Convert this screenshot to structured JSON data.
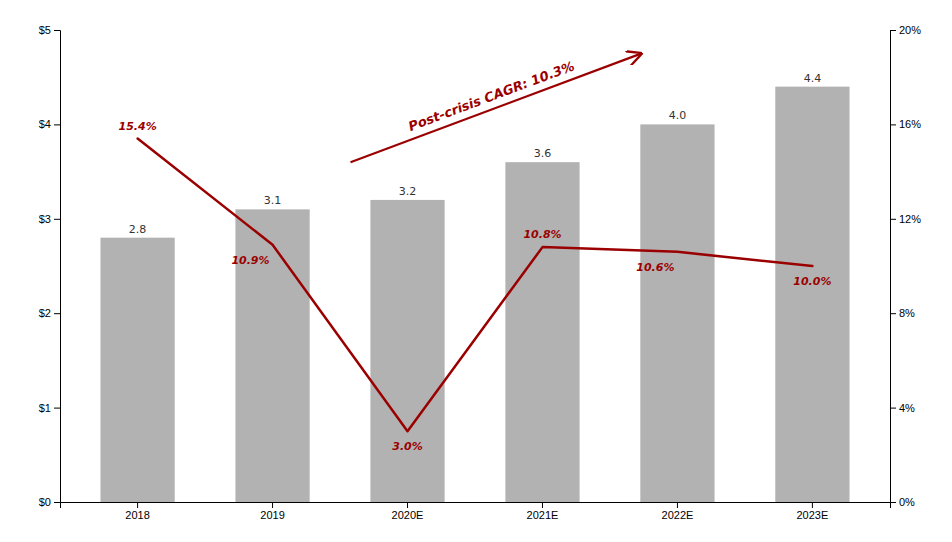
{
  "chart_data": {
    "type": "bar",
    "categories": [
      "2018",
      "2019",
      "2020E",
      "2021E",
      "2022E",
      "2023E"
    ],
    "series": [
      {
        "type": "bar",
        "color": "#b2b2b2",
        "values": [
          2.8,
          3.1,
          3.2,
          3.6,
          4.0,
          4.4
        ],
        "value_labels": [
          "2.8",
          "3.1",
          "3.2",
          "3.6",
          "4.0",
          "4.4"
        ]
      },
      {
        "type": "line",
        "axis": "y2",
        "color": "#9b0000",
        "values": [
          15.4,
          10.9,
          3.0,
          10.8,
          10.6,
          10.0
        ],
        "value_labels": [
          "15.4%",
          "10.9%",
          "3.0%",
          "10.8%",
          "10.6%",
          "10.0%"
        ]
      }
    ],
    "ylim": [
      0,
      5
    ],
    "yticks": [
      {
        "value": 0,
        "label": "$0"
      },
      {
        "value": 1,
        "label": "$1"
      },
      {
        "value": 2,
        "label": "$2"
      },
      {
        "value": 3,
        "label": "$3"
      },
      {
        "value": 4,
        "label": "$4"
      },
      {
        "value": 5,
        "label": "$5"
      }
    ],
    "y2lim": [
      0,
      20
    ],
    "y2ticks": [
      {
        "value": 0,
        "label": "0%"
      },
      {
        "value": 4,
        "label": "4%"
      },
      {
        "value": 8,
        "label": "8%"
      },
      {
        "value": 12,
        "label": "12%"
      },
      {
        "value": 16,
        "label": "16%"
      },
      {
        "value": 20,
        "label": "20%"
      }
    ],
    "annotation": "Post-crisis CAGR: 10.3%",
    "data_labels": true,
    "grid": false
  }
}
